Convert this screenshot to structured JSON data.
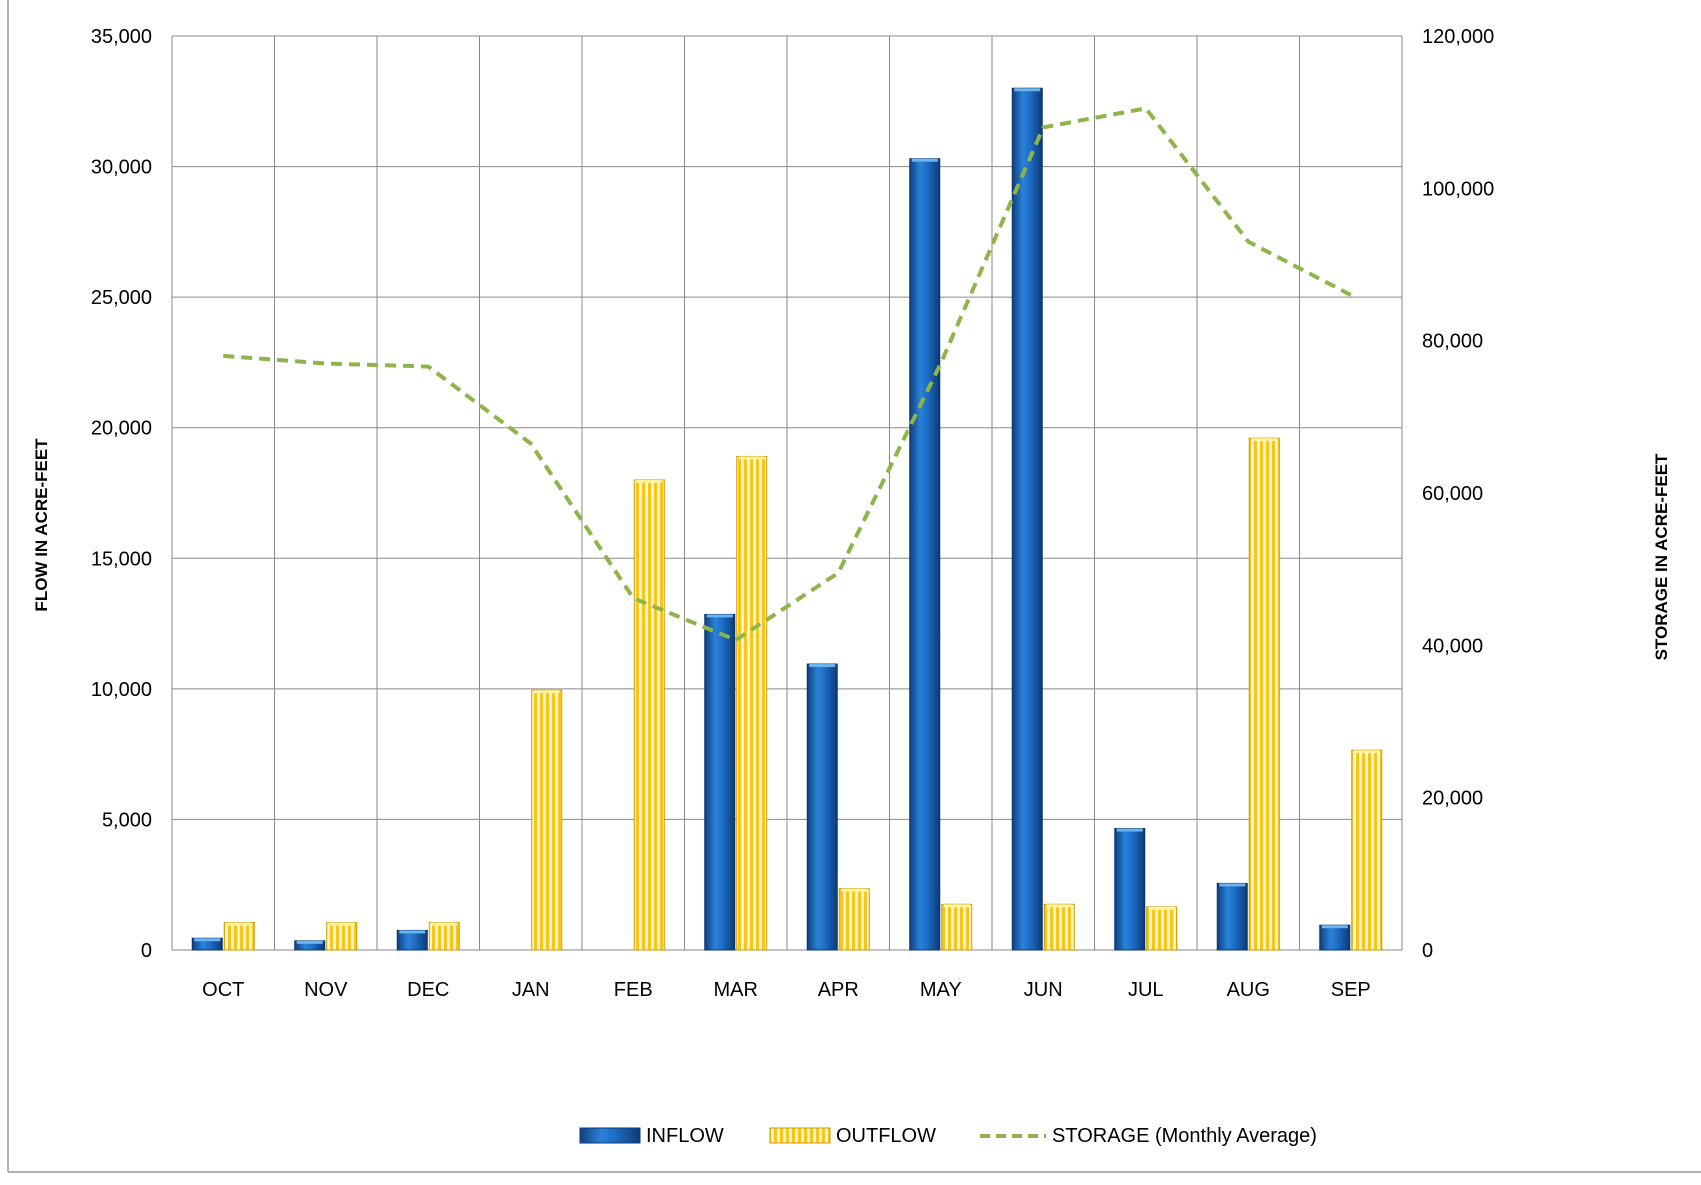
{
  "chart_data": {
    "type": "bar",
    "title": "",
    "categories": [
      "OCT",
      "NOV",
      "DEC",
      "JAN",
      "FEB",
      "MAR",
      "APR",
      "MAY",
      "JUN",
      "JUL",
      "AUG",
      "SEP"
    ],
    "series": [
      {
        "name": "INFLOW",
        "type": "bar",
        "axis": "left",
        "color": "#1f6fc5",
        "values": [
          450,
          350,
          750,
          0,
          0,
          12850,
          10950,
          30300,
          33000,
          4650,
          2550,
          950
        ]
      },
      {
        "name": "OUTFLOW",
        "type": "bar",
        "axis": "left",
        "color": "#f5c518",
        "values": [
          1050,
          1050,
          1050,
          9950,
          18000,
          18900,
          2350,
          1750,
          1750,
          1650,
          19600,
          7650
        ]
      },
      {
        "name": "STORAGE (Monthly Average)",
        "type": "line",
        "style": "dashed",
        "axis": "right",
        "color": "#8db54a",
        "values": [
          78000,
          77000,
          76600,
          66500,
          46200,
          40700,
          49500,
          77000,
          108000,
          110500,
          93000,
          86000
        ]
      }
    ],
    "y_left": {
      "label": "FLOW IN ACRE-FEET",
      "ylim": [
        0,
        35000
      ],
      "ticks": [
        "0",
        "5,000",
        "10,000",
        "15,000",
        "20,000",
        "25,000",
        "30,000",
        "35,000"
      ]
    },
    "y_right": {
      "label": "STORAGE IN ACRE-FEET",
      "ylim": [
        0,
        120000
      ],
      "ticks": [
        "0",
        "20,000",
        "40,000",
        "60,000",
        "80,000",
        "100,000",
        "120,000"
      ]
    },
    "grid": true,
    "legend": "bottom-center"
  }
}
